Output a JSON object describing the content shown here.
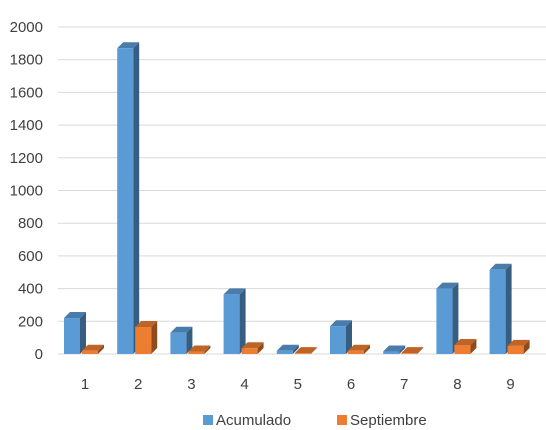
{
  "chart_data": {
    "type": "bar",
    "style": "3d-clustered-column",
    "title": "",
    "xlabel": "",
    "ylabel": "",
    "categories": [
      "1",
      "2",
      "3",
      "4",
      "5",
      "6",
      "7",
      "8",
      "9"
    ],
    "series": [
      {
        "name": "Acumulado",
        "color": "#5b9bd5",
        "values": [
          220,
          1870,
          130,
          365,
          20,
          170,
          15,
          400,
          515
        ]
      },
      {
        "name": "Septiembre",
        "color": "#ed7d31",
        "values": [
          20,
          165,
          15,
          35,
          5,
          20,
          5,
          55,
          50
        ]
      }
    ],
    "ylim": [
      0,
      2000
    ],
    "yticks": [
      0,
      200,
      400,
      600,
      800,
      1000,
      1200,
      1400,
      1600,
      1800,
      2000
    ],
    "grid": true,
    "legend_position": "bottom"
  }
}
